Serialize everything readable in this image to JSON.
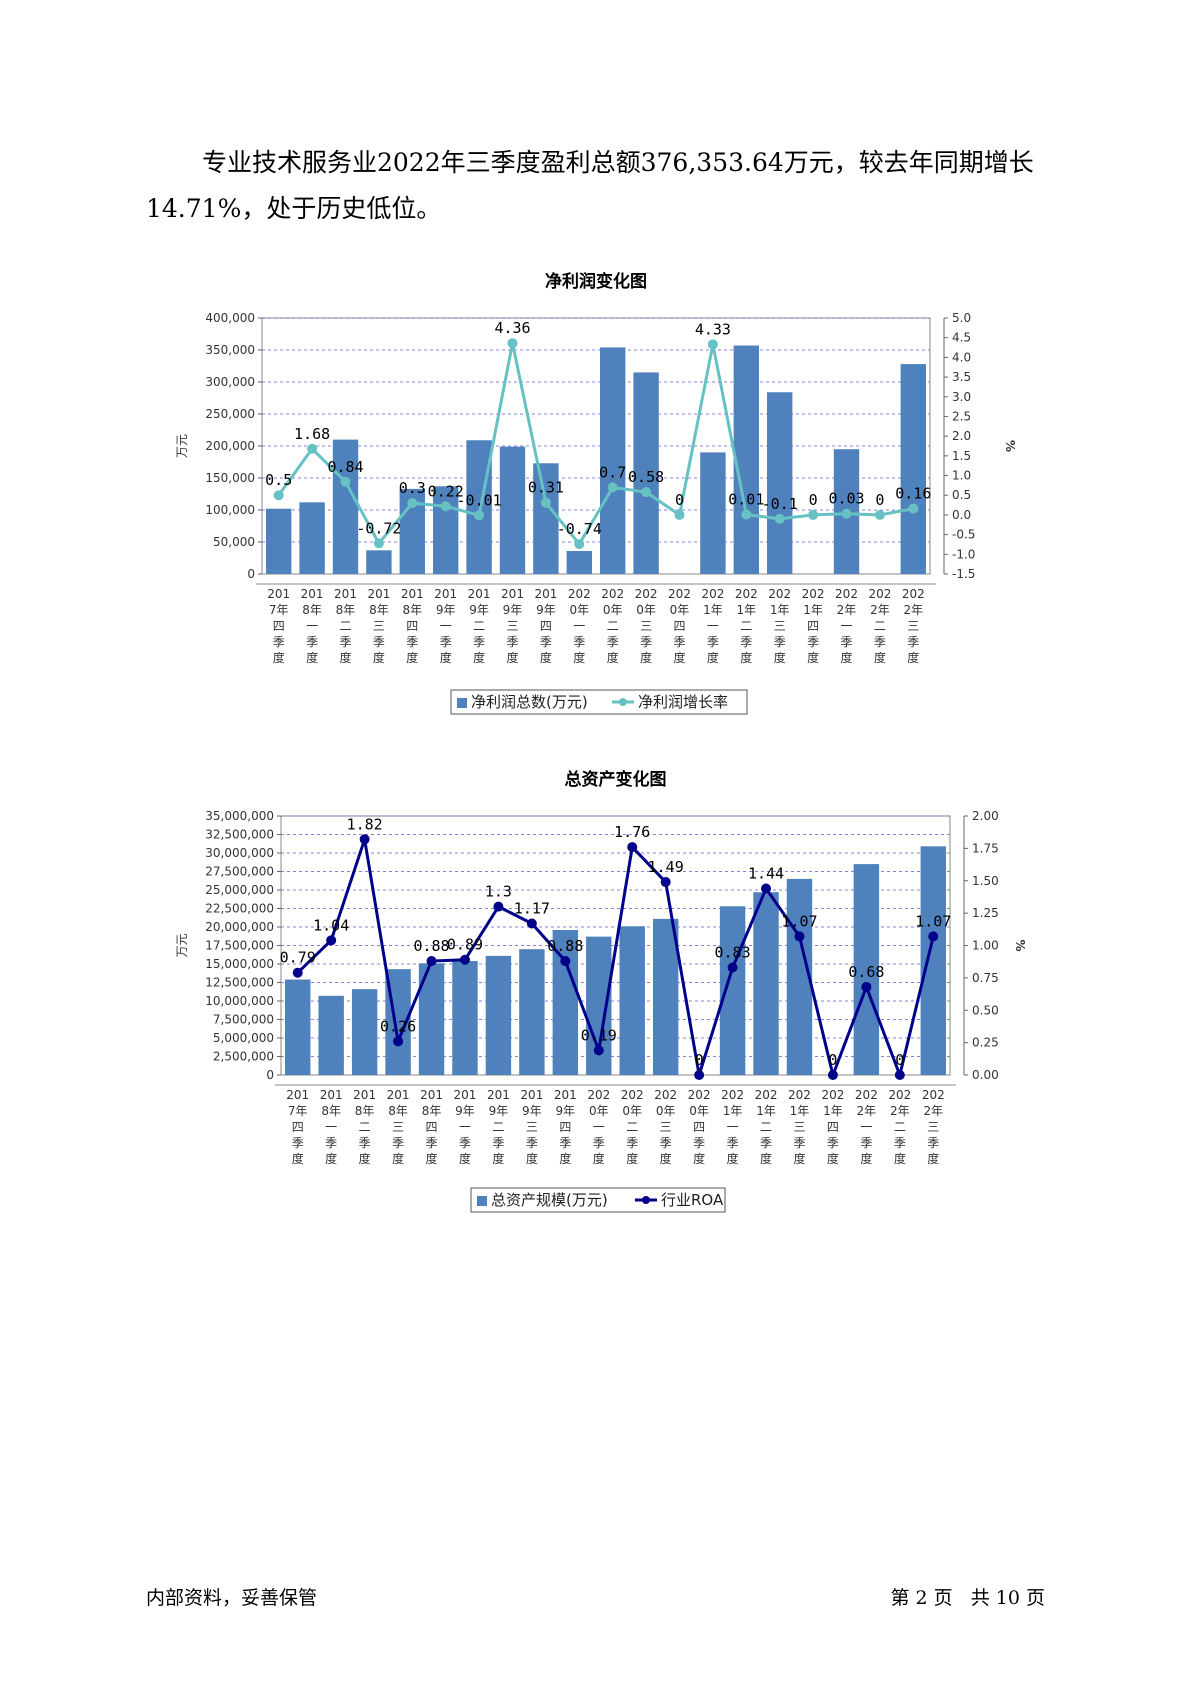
{
  "intro": {
    "text": "专业技术服务业2022年三季度盈利总额376,353.64万元，较去年同期增长14.71%，处于历史低位。"
  },
  "footer": {
    "left": "内部资料，妥善保管",
    "page_label": "第 2 页   共 10 页"
  },
  "chart_data": [
    {
      "type": "bar",
      "title": "净利润变化图",
      "ylabel": "万元",
      "y2label": "%",
      "ylim": [
        0,
        400000
      ],
      "y2lim": [
        -1.5,
        5.0
      ],
      "yticks": [
        "0",
        "50,000",
        "100,000",
        "150,000",
        "200,000",
        "250,000",
        "300,000",
        "350,000",
        "400,000"
      ],
      "y2ticks": [
        "-1.5",
        "-1.0",
        "-0.5",
        "0.0",
        "0.5",
        "1.0",
        "1.5",
        "2.0",
        "2.5",
        "3.0",
        "3.5",
        "4.0",
        "4.5",
        "5.0"
      ],
      "categories": [
        "2017年四季度",
        "2018年一季度",
        "2018年二季度",
        "2018年三季度",
        "2018年四季度",
        "2019年一季度",
        "2019年二季度",
        "2019年三季度",
        "2019年四季度",
        "2020年一季度",
        "2020年二季度",
        "2020年三季度",
        "2020年四季度",
        "2021年一季度",
        "2021年二季度",
        "2021年三季度",
        "2021年四季度",
        "2022年一季度",
        "2022年二季度",
        "2022年三季度"
      ],
      "series": [
        {
          "name": "净利润总数(万元)",
          "kind": "bar",
          "color": "#4f81bd",
          "values": [
            102000,
            112000,
            210000,
            37000,
            133000,
            137000,
            209000,
            199000,
            173000,
            36000,
            354000,
            315000,
            0,
            190000,
            357000,
            284000,
            0,
            195000,
            0,
            328000
          ]
        },
        {
          "name": "净利润增长率",
          "kind": "line",
          "axis": "right",
          "color": "#66c2c2",
          "values": [
            0.5,
            1.68,
            0.84,
            -0.72,
            0.3,
            0.22,
            -0.01,
            4.36,
            0.31,
            -0.74,
            0.7,
            0.58,
            0,
            4.33,
            0.01,
            -0.1,
            0,
            0.03,
            0,
            0.16
          ],
          "labels": [
            "0.5",
            "1.68",
            "0.84",
            "-0.72",
            "0.3",
            "0.22",
            "-0.01",
            "4.36",
            "0.31",
            "-0.74",
            "0.7",
            "0.58",
            "0",
            "4.33",
            "0.01",
            "-0.1",
            "0",
            "0.03",
            "0",
            "0.16"
          ]
        }
      ]
    },
    {
      "type": "bar",
      "title": "总资产变化图",
      "ylabel": "万元",
      "y2label": "%",
      "ylim": [
        0,
        35000000
      ],
      "y2lim": [
        0,
        2.0
      ],
      "yticks": [
        "0",
        "2,500,000",
        "5,000,000",
        "7,500,000",
        "10,000,000",
        "12,500,000",
        "15,000,000",
        "17,500,000",
        "20,000,000",
        "22,500,000",
        "25,000,000",
        "27,500,000",
        "30,000,000",
        "32,500,000",
        "35,000,000"
      ],
      "y2ticks": [
        "0.00",
        "0.25",
        "0.50",
        "0.75",
        "1.00",
        "1.25",
        "1.50",
        "1.75",
        "2.00"
      ],
      "categories": [
        "2017年四季度",
        "2018年一季度",
        "2018年二季度",
        "2018年三季度",
        "2018年四季度",
        "2019年一季度",
        "2019年二季度",
        "2019年三季度",
        "2019年四季度",
        "2020年一季度",
        "2020年二季度",
        "2020年三季度",
        "2020年四季度",
        "2021年一季度",
        "2021年二季度",
        "2021年三季度",
        "2021年四季度",
        "2022年一季度",
        "2022年二季度",
        "2022年三季度"
      ],
      "series": [
        {
          "name": "总资产规模(万元)",
          "kind": "bar",
          "color": "#4f81bd",
          "values": [
            12900000,
            10700000,
            11600000,
            14300000,
            15100000,
            15400000,
            16100000,
            17000000,
            19600000,
            18700000,
            20100000,
            21100000,
            0,
            22800000,
            24700000,
            26500000,
            0,
            28500000,
            0,
            30900000
          ]
        },
        {
          "name": "行业ROA",
          "kind": "line",
          "axis": "right",
          "color": "#00008b",
          "values": [
            0.79,
            1.04,
            1.82,
            0.26,
            0.88,
            0.89,
            1.3,
            1.17,
            0.88,
            0.19,
            1.76,
            1.49,
            0,
            0.83,
            1.44,
            1.07,
            0,
            0.68,
            0,
            1.07
          ],
          "labels": [
            "0.79",
            "1.04",
            "1.82",
            "0.26",
            "0.88",
            "0.89",
            "1.3",
            "1.17",
            "0.88",
            "0.19",
            "1.76",
            "1.49",
            "0",
            "0.83",
            "1.44",
            "1.07",
            "0",
            "0.68",
            "0",
            "1.07"
          ]
        }
      ]
    }
  ]
}
